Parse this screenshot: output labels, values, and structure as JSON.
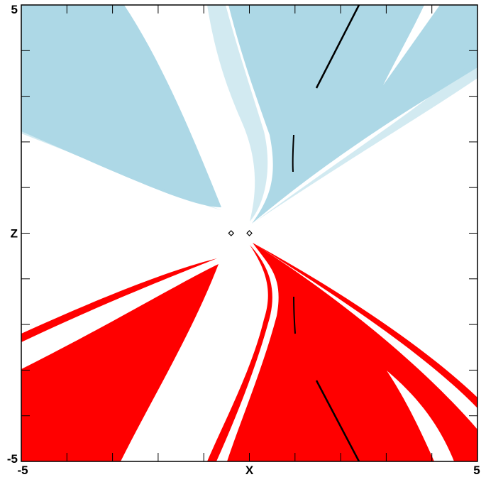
{
  "chart_data": {
    "type": "scatter",
    "title": "",
    "xlabel": "X",
    "ylabel": "Z",
    "xlim": [
      -5,
      5
    ],
    "ylim": [
      -5,
      5
    ],
    "x_tick_labels": [
      "-5",
      "X",
      "5"
    ],
    "y_tick_labels": [
      "5",
      "Z",
      "-5"
    ],
    "grid": false,
    "legend": "none",
    "colors": {
      "upper_basin": "#add8e6",
      "lower_basin": "#ff0000",
      "background": "#ffffff",
      "lines": "#000000"
    },
    "points": [
      {
        "x": -0.4,
        "y": 0.0
      },
      {
        "x": 0.0,
        "y": 0.0
      }
    ]
  }
}
